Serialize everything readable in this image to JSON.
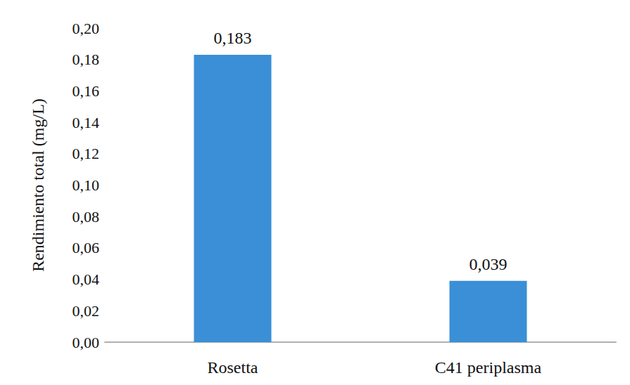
{
  "chart_data": {
    "type": "bar",
    "y_label": "Rendimiento total (mg/L)",
    "categories": [
      "Rosetta",
      "C41 periplasma"
    ],
    "values": [
      0.183,
      0.039
    ],
    "value_labels": [
      "0,183",
      "0,039"
    ],
    "color": "#3a8fd6",
    "ylim": [
      0,
      0.2
    ],
    "yticks": [
      {
        "value": 0,
        "label": "0,00"
      },
      {
        "value": 0.02,
        "label": "0,02"
      },
      {
        "value": 0.04,
        "label": "0,04"
      },
      {
        "value": 0.06,
        "label": "0,06"
      },
      {
        "value": 0.08,
        "label": "0,08"
      },
      {
        "value": 0.1,
        "label": "0,10"
      },
      {
        "value": 0.12,
        "label": "0,12"
      },
      {
        "value": 0.14,
        "label": "0,14"
      },
      {
        "value": 0.16,
        "label": "0,16"
      },
      {
        "value": 0.18,
        "label": "0,18"
      },
      {
        "value": 0.2,
        "label": "0,20"
      }
    ],
    "grid": false,
    "data_labels": true
  }
}
